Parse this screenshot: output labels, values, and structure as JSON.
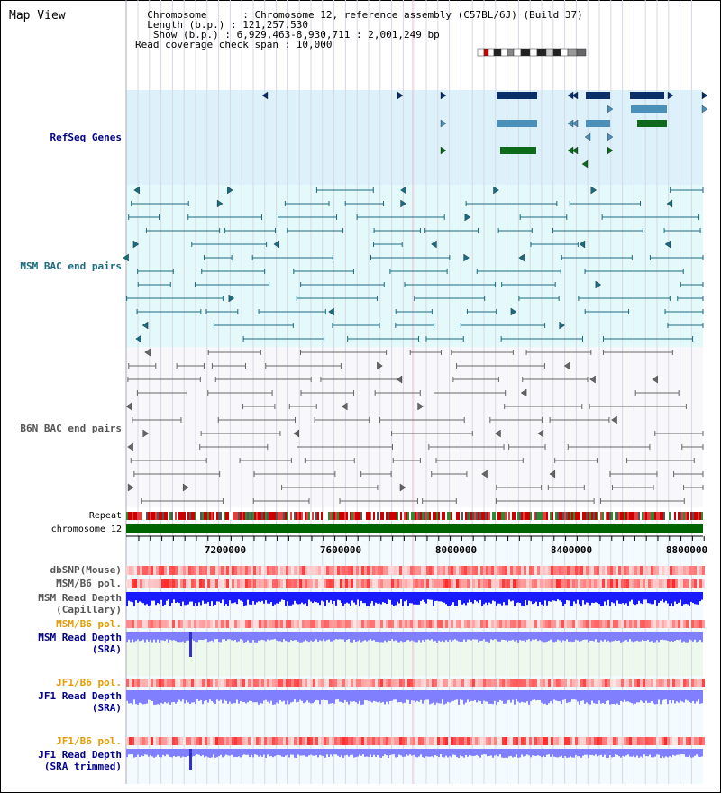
{
  "header": {
    "title": "Map View",
    "info_lines": [
      "  Chromosome      : Chromosome 12, reference assembly (C57BL/6J) (Build 37)",
      "  Length (b.p.) : 121,257,530",
      "   Show (b.p.) : 6,929,463-8,930,711 : 2,001,249 bp",
      "Read coverage check span : 10,000"
    ]
  },
  "tracks": {
    "refseq_label": "RefSeq Genes",
    "msm_bac_label": "MSM BAC end pairs",
    "b6n_bac_label": "B6N BAC end pairs",
    "repeat_label": "Repeat",
    "chromosome_label": "chromosome 12",
    "dbsnp_label": "dbSNP(Mouse)",
    "msm_b6_pol_label": "MSM/B6 pol.",
    "msm_read_depth_cap_label1": "MSM Read Depth",
    "msm_read_depth_cap_label2": "(Capillary)",
    "msm_b6_pol2_label": "MSM/B6 pol.",
    "msm_read_depth_sra_label1": "MSM Read Depth",
    "msm_read_depth_sra_label2": "(SRA)",
    "jf1_b6_pol_label": "JF1/B6 pol.",
    "jf1_read_depth_label1": "JF1 Read Depth",
    "jf1_read_depth_label2": "(SRA)",
    "jf1_b6_pol2_label": "JF1/B6 pol.",
    "jf1_read_depth_trim_label1": "JF1 Read Depth",
    "jf1_read_depth_trim_label2": "(SRA trimmed)"
  },
  "axis": {
    "ticks": [
      "7200000",
      "7600000",
      "8000000",
      "8400000",
      "8800000"
    ]
  },
  "colors": {
    "refseq_bg": "#ddf1fb",
    "msm_bg": "#e4fafa",
    "b6n_bg": "#f8f8fb",
    "gene_navy": "#0a2e6a",
    "gene_steel": "#4a90b8",
    "gene_green": "#0e6a1a",
    "bac_teal": "#1a6a80",
    "bac_grey": "#666666",
    "chromosome_green": "#006400",
    "depth_blue": "#1a1aff",
    "depth_light": "#8080ff"
  }
}
